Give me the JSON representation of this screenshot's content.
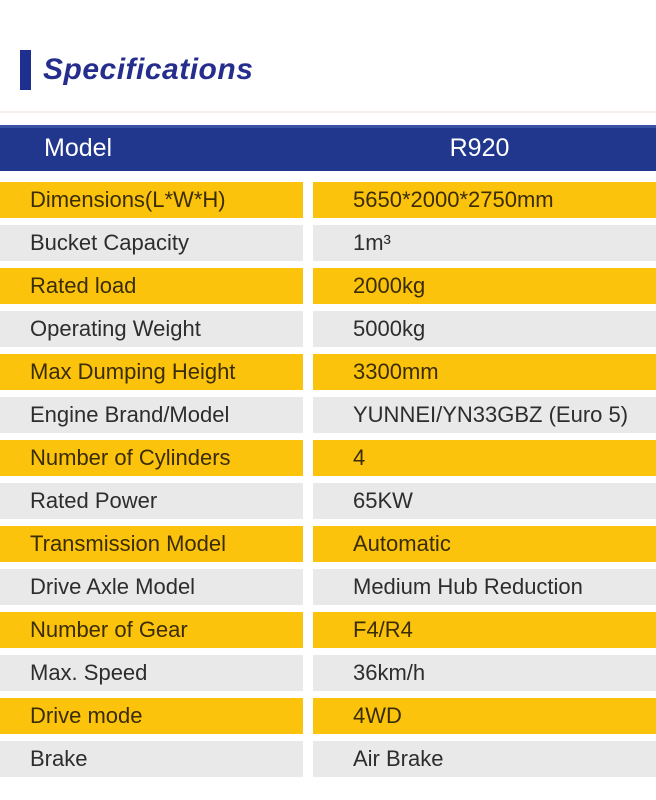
{
  "page": {
    "title": "Specifications"
  },
  "table": {
    "header": {
      "label": "Model",
      "value": "R920"
    },
    "rows": [
      {
        "label": "Dimensions(L*W*H)",
        "value": "5650*2000*2750mm",
        "highlight": true
      },
      {
        "label": "Bucket Capacity",
        "value": "1m³",
        "highlight": false
      },
      {
        "label": "Rated load",
        "value": "2000kg",
        "highlight": true
      },
      {
        "label": "Operating Weight",
        "value": "5000kg",
        "highlight": false
      },
      {
        "label": "Max Dumping Height",
        "value": "3300mm",
        "highlight": true
      },
      {
        "label": "Engine Brand/Model",
        "value": "YUNNEI/YN33GBZ  (Euro 5)",
        "highlight": false
      },
      {
        "label": "Number of Cylinders",
        "value": "4",
        "highlight": true
      },
      {
        "label": "Rated Power",
        "value": "65KW",
        "highlight": false
      },
      {
        "label": "Transmission Model",
        "value": "Automatic",
        "highlight": true
      },
      {
        "label": "Drive Axle Model",
        "value": "Medium Hub Reduction",
        "highlight": false
      },
      {
        "label": "Number of Gear",
        "value": "F4/R4",
        "highlight": true
      },
      {
        "label": "Max. Speed",
        "value": "36km/h",
        "highlight": false
      },
      {
        "label": "Drive mode",
        "value": "4WD",
        "highlight": true
      },
      {
        "label": "Brake",
        "value": "Air Brake",
        "highlight": false
      }
    ]
  },
  "colors": {
    "header_bg": "#21378d",
    "header_text": "#ffffff",
    "row_highlight_bg": "#fcc30d",
    "row_highlight_text": "#3a2d06",
    "row_alt_bg": "#e9e9e9",
    "row_alt_text": "#2d2d2d",
    "title_accent": "#1f2f8f",
    "title_text": "#252e8d"
  }
}
